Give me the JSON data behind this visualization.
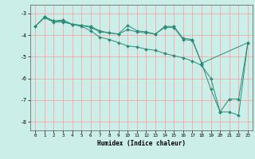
{
  "title": "",
  "xlabel": "Humidex (Indice chaleur)",
  "ylabel": "",
  "bg_color": "#cceee8",
  "line_color": "#2d8b78",
  "grid_color": "#ff9999",
  "xlim": [
    -0.5,
    23.5
  ],
  "ylim": [
    -8.4,
    -2.6
  ],
  "yticks": [
    -8,
    -7,
    -6,
    -5,
    -4,
    -3
  ],
  "xticks": [
    0,
    1,
    2,
    3,
    4,
    5,
    6,
    7,
    8,
    9,
    10,
    11,
    12,
    13,
    14,
    15,
    16,
    17,
    18,
    19,
    20,
    21,
    22,
    23
  ],
  "line1_x": [
    0,
    1,
    2,
    3,
    4,
    5,
    6,
    7,
    8,
    9,
    10,
    11,
    12,
    13,
    14,
    15,
    16,
    17,
    18,
    19,
    20,
    21,
    22,
    23
  ],
  "line1_y": [
    -3.6,
    -3.2,
    -3.4,
    -3.4,
    -3.5,
    -3.6,
    -3.8,
    -4.1,
    -4.2,
    -4.35,
    -4.5,
    -4.55,
    -4.65,
    -4.7,
    -4.85,
    -4.95,
    -5.05,
    -5.2,
    -5.4,
    -6.0,
    -7.55,
    -7.55,
    -7.7,
    -4.35
  ],
  "line2_x": [
    0,
    1,
    2,
    3,
    4,
    5,
    6,
    7,
    8,
    9,
    10,
    11,
    12,
    13,
    14,
    15,
    16,
    17,
    18,
    19,
    20,
    21,
    22,
    23
  ],
  "line2_y": [
    -3.6,
    -3.15,
    -3.35,
    -3.35,
    -3.5,
    -3.55,
    -3.65,
    -3.85,
    -3.9,
    -3.95,
    -3.55,
    -3.8,
    -3.85,
    -3.95,
    -3.65,
    -3.65,
    -4.2,
    -4.25,
    -5.3,
    -6.5,
    -7.55,
    -6.95,
    -6.95,
    -4.35
  ],
  "line3_x": [
    1,
    2,
    3,
    4,
    5,
    6,
    7,
    8,
    9,
    10,
    11,
    12,
    13,
    14,
    15,
    16,
    17,
    18,
    23
  ],
  "line3_y": [
    -3.15,
    -3.35,
    -3.3,
    -3.5,
    -3.55,
    -3.6,
    -3.8,
    -3.9,
    -3.95,
    -3.75,
    -3.85,
    -3.9,
    -3.95,
    -3.6,
    -3.6,
    -4.15,
    -4.2,
    -5.3,
    -4.35
  ]
}
